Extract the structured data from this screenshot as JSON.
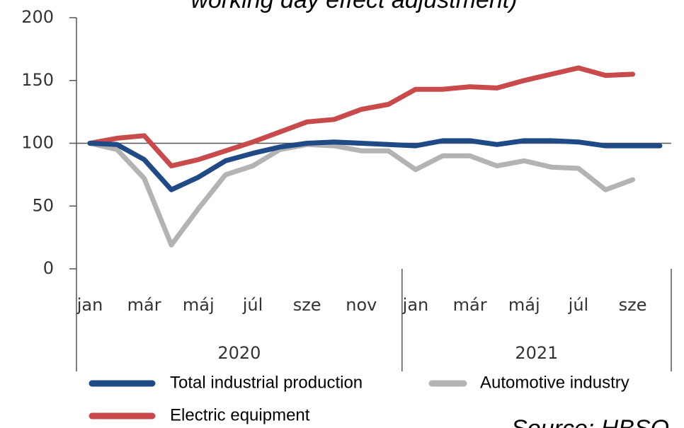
{
  "chart_data": {
    "type": "line",
    "title": "working day effect adjustment)",
    "source": "Source: HBSO",
    "categories": [
      "jan",
      null,
      "már",
      null,
      "máj",
      null,
      "júl",
      null,
      "sze",
      null,
      "nov",
      null,
      "jan",
      null,
      "már",
      null,
      "máj",
      null,
      "júl",
      null,
      "sze",
      null
    ],
    "year_labels": [
      "2020",
      "2021"
    ],
    "series": [
      {
        "name": "Total industrial production",
        "color": "#1f4a85",
        "values": [
          100,
          99,
          87,
          63,
          73,
          86,
          92,
          97,
          100,
          101,
          100,
          99,
          98,
          102,
          102,
          99,
          102,
          102,
          101,
          98,
          98,
          98
        ]
      },
      {
        "name": "Automotive industry",
        "color": "#b3b3b3",
        "values": [
          100,
          95,
          72,
          19,
          48,
          75,
          82,
          95,
          99,
          98,
          94,
          94,
          79,
          90,
          90,
          82,
          86,
          81,
          80,
          63,
          71,
          null
        ]
      },
      {
        "name": "Electric equipment",
        "color": "#c94a4a",
        "values": [
          100,
          104,
          106,
          82,
          87,
          94,
          101,
          109,
          117,
          119,
          127,
          131,
          143,
          143,
          145,
          144,
          150,
          155,
          160,
          154,
          155,
          null
        ]
      }
    ],
    "ylim": [
      0,
      200
    ],
    "yticks": [
      0,
      50,
      100,
      150,
      200
    ],
    "reference_line": 100
  }
}
